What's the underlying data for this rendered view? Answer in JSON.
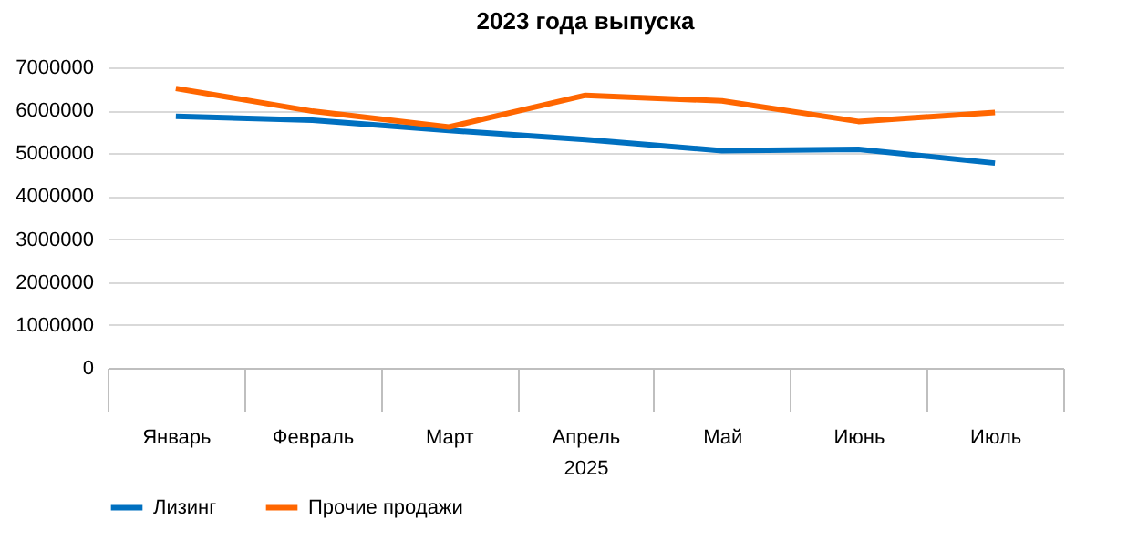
{
  "chart_data": {
    "type": "line",
    "title": "2023 года выпуска",
    "xlabel": "2025",
    "categories": [
      "Январь",
      "Февраль",
      "Март",
      "Апрель",
      "Май",
      "Июнь",
      "Июль"
    ],
    "series": [
      {
        "name": "Лизинг",
        "color": "#0070c0",
        "values": [
          5860000,
          5770000,
          5530000,
          5320000,
          5060000,
          5090000,
          4770000
        ]
      },
      {
        "name": "Прочие продажи",
        "color": "#ff6600",
        "values": [
          6510000,
          5980000,
          5610000,
          6350000,
          6220000,
          5740000,
          5950000
        ]
      }
    ],
    "ylim": [
      0,
      7000000
    ],
    "yticks": [
      0,
      1000000,
      2000000,
      3000000,
      4000000,
      5000000,
      6000000,
      7000000
    ],
    "grid": "y",
    "legend": "bottom",
    "marker": "none",
    "line_style": "solid"
  }
}
